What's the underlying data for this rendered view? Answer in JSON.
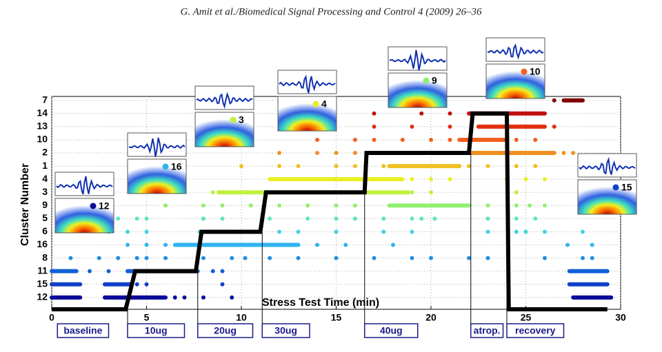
{
  "header": "G. Amit et al./Biomedical Signal Processing and Control 4 (2009) 26–36",
  "chart_data": {
    "type": "cluster-timeline",
    "xlabel": "Stress Test Time (min)",
    "ylabel": "Cluster Number",
    "xlim": [
      0,
      30
    ],
    "xticks": [
      0,
      5,
      10,
      15,
      20,
      25,
      30
    ],
    "ylim": [
      0.1,
      16.3
    ],
    "categories": [
      "12",
      "15",
      "11",
      "8",
      "16",
      "6",
      "5",
      "9",
      "3",
      "4",
      "1",
      "2",
      "10",
      "13",
      "14",
      "7"
    ],
    "grid": true,
    "series": [
      {
        "row": 0,
        "color": "#0a0a9a",
        "x": [
          6.5,
          7,
          8,
          9.5
        ],
        "bands": [
          [
            0,
            1.5
          ],
          [
            2.8,
            6
          ],
          [
            27.5,
            29.5
          ]
        ]
      },
      {
        "row": 1,
        "color": "#1040c8",
        "x": [
          4.5,
          5,
          9
        ],
        "bands": [
          [
            0,
            1.5
          ],
          [
            2.8,
            4.2
          ],
          [
            27.3,
            29.3
          ]
        ]
      },
      {
        "row": 2,
        "color": "#1060d8",
        "x": [
          2,
          3,
          8.5,
          9
        ],
        "bands": [
          [
            0,
            1.3
          ],
          [
            4,
            7.7
          ],
          [
            27.3,
            29.3
          ]
        ]
      },
      {
        "row": 3,
        "color": "#2090e0",
        "x": [
          1,
          2.5,
          3.5,
          4.5,
          5,
          6,
          8,
          9.5,
          10.2,
          11.5,
          13,
          15,
          17,
          19,
          20,
          22,
          23,
          26,
          28,
          28.5
        ],
        "bands": []
      },
      {
        "row": 4,
        "color": "#30b4f0",
        "x": [
          4,
          5,
          6,
          14,
          15.5,
          18,
          27.2,
          28.5
        ],
        "bands": [
          [
            6.5,
            13
          ]
        ]
      },
      {
        "row": 5,
        "color": "#40d4e0",
        "x": [
          3,
          4,
          5,
          12,
          13,
          15,
          17.5,
          19,
          23,
          24.5,
          25,
          26,
          28
        ],
        "bands": [
          [
            7.8,
            11
          ]
        ]
      },
      {
        "row": 6,
        "color": "#60e4c0",
        "x": [
          3,
          3.5,
          4.5,
          5,
          8,
          9,
          11.5,
          13.5,
          15,
          16,
          17.5,
          19,
          19.5,
          20.2,
          23,
          24.5,
          25.5
        ],
        "bands": []
      },
      {
        "row": 7,
        "color": "#90f070",
        "x": [
          3,
          6,
          8,
          9,
          10.5,
          12,
          13.5,
          15,
          16,
          23,
          24.5,
          25.2,
          26
        ],
        "bands": [
          [
            17.8,
            22
          ]
        ]
      },
      {
        "row": 8,
        "color": "#c0f040",
        "x": [
          8.5,
          19,
          20,
          24.5
        ],
        "bands": [
          [
            8.8,
            18.8
          ]
        ]
      },
      {
        "row": 9,
        "color": "#e8f020",
        "x": [
          19,
          20,
          21,
          24,
          25,
          26
        ],
        "bands": [
          [
            11.5,
            18.5
          ]
        ]
      },
      {
        "row": 10,
        "color": "#f0c020",
        "x": [
          10,
          12,
          13,
          15,
          16,
          17.5,
          22,
          23,
          24.5,
          25.5
        ],
        "bands": [
          [
            17.8,
            21.5
          ]
        ]
      },
      {
        "row": 11,
        "color": "#f09020",
        "x": [
          12,
          14,
          15,
          16,
          17,
          18,
          19.5,
          20.5,
          27,
          27.5
        ],
        "bands": [
          [
            21,
            26.5
          ]
        ]
      },
      {
        "row": 12,
        "color": "#f06020",
        "x": [
          14,
          16,
          17,
          18.5,
          20,
          21,
          24.5,
          25.5
        ],
        "bands": [
          [
            21.5,
            24
          ]
        ]
      },
      {
        "row": 13,
        "color": "#e03010",
        "x": [
          17,
          19,
          21,
          26.5
        ],
        "bands": [
          [
            22.5,
            26
          ]
        ]
      },
      {
        "row": 14,
        "color": "#c01010",
        "x": [
          17,
          19.5,
          21
        ],
        "bands": [
          [
            22,
            26
          ]
        ]
      },
      {
        "row": 15,
        "color": "#800000",
        "x": [
          26.5
        ],
        "bands": [
          [
            27,
            28
          ]
        ]
      }
    ],
    "step": {
      "color": "#000000",
      "x": [
        0,
        3.9,
        4.4,
        7.6,
        7.9,
        11,
        11.3,
        16.5,
        16.6,
        22,
        22.2,
        24,
        24.1,
        29.3
      ],
      "values": [
        0.1,
        0.1,
        3,
        3,
        6,
        6,
        9,
        9,
        12,
        12,
        15,
        15,
        0.1,
        0.1
      ]
    },
    "phases": [
      {
        "label": "baseline",
        "start": 0.3,
        "end": 3
      },
      {
        "label": "10ug",
        "start": 4,
        "end": 7
      },
      {
        "label": "20ug",
        "start": 7.7,
        "end": 10.6
      },
      {
        "label": "30ug",
        "start": 11.1,
        "end": 13.6
      },
      {
        "label": "40ug",
        "start": 16.5,
        "end": 19.3
      },
      {
        "label": "atrop.",
        "start": 22.1,
        "end": 23.8
      },
      {
        "label": "recovery",
        "start": 24,
        "end": 27
      }
    ],
    "insets": [
      {
        "label": "12",
        "color": "#0a0a9a"
      },
      {
        "label": "16",
        "color": "#30b4f0"
      },
      {
        "label": "3",
        "color": "#c0f040"
      },
      {
        "label": "4",
        "color": "#e8f020"
      },
      {
        "label": "9",
        "color": "#90f070"
      },
      {
        "label": "10",
        "color": "#f06020"
      },
      {
        "label": "15",
        "color": "#1040c8"
      }
    ]
  }
}
